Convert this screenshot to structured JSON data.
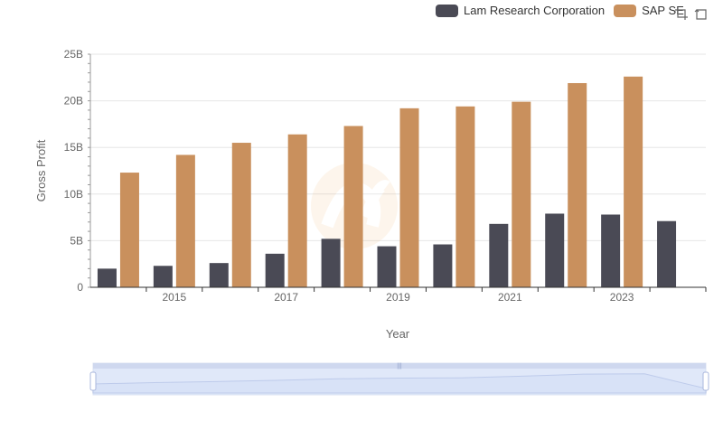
{
  "chart_data": {
    "type": "bar",
    "xlabel": "Year",
    "ylabel": "Gross Profit",
    "x": [
      2014,
      2015,
      2016,
      2017,
      2018,
      2019,
      2020,
      2021,
      2022,
      2023,
      2024
    ],
    "x_tick_labels": [
      "2015",
      "2017",
      "2019",
      "2021",
      "2023"
    ],
    "y_tick_labels": [
      "0",
      "5B",
      "10B",
      "15B",
      "20B",
      "25B"
    ],
    "ylim": [
      0,
      25000000000
    ],
    "grid": true,
    "legend_position": "top-right",
    "series": [
      {
        "name": "Lam Research Corporation",
        "color": "#4a4a55",
        "values": [
          2000000000,
          2300000000,
          2600000000,
          3600000000,
          5200000000,
          4400000000,
          4600000000,
          6800000000,
          7900000000,
          7800000000,
          7100000000
        ]
      },
      {
        "name": "SAP SE",
        "color": "#c9905d",
        "values": [
          12300000000,
          14200000000,
          15500000000,
          16400000000,
          17300000000,
          19200000000,
          19400000000,
          19900000000,
          21900000000,
          22600000000,
          null
        ]
      }
    ]
  },
  "toolbox": {
    "zoom_icon": "zoom-icon",
    "restore_icon": "restore-icon"
  }
}
